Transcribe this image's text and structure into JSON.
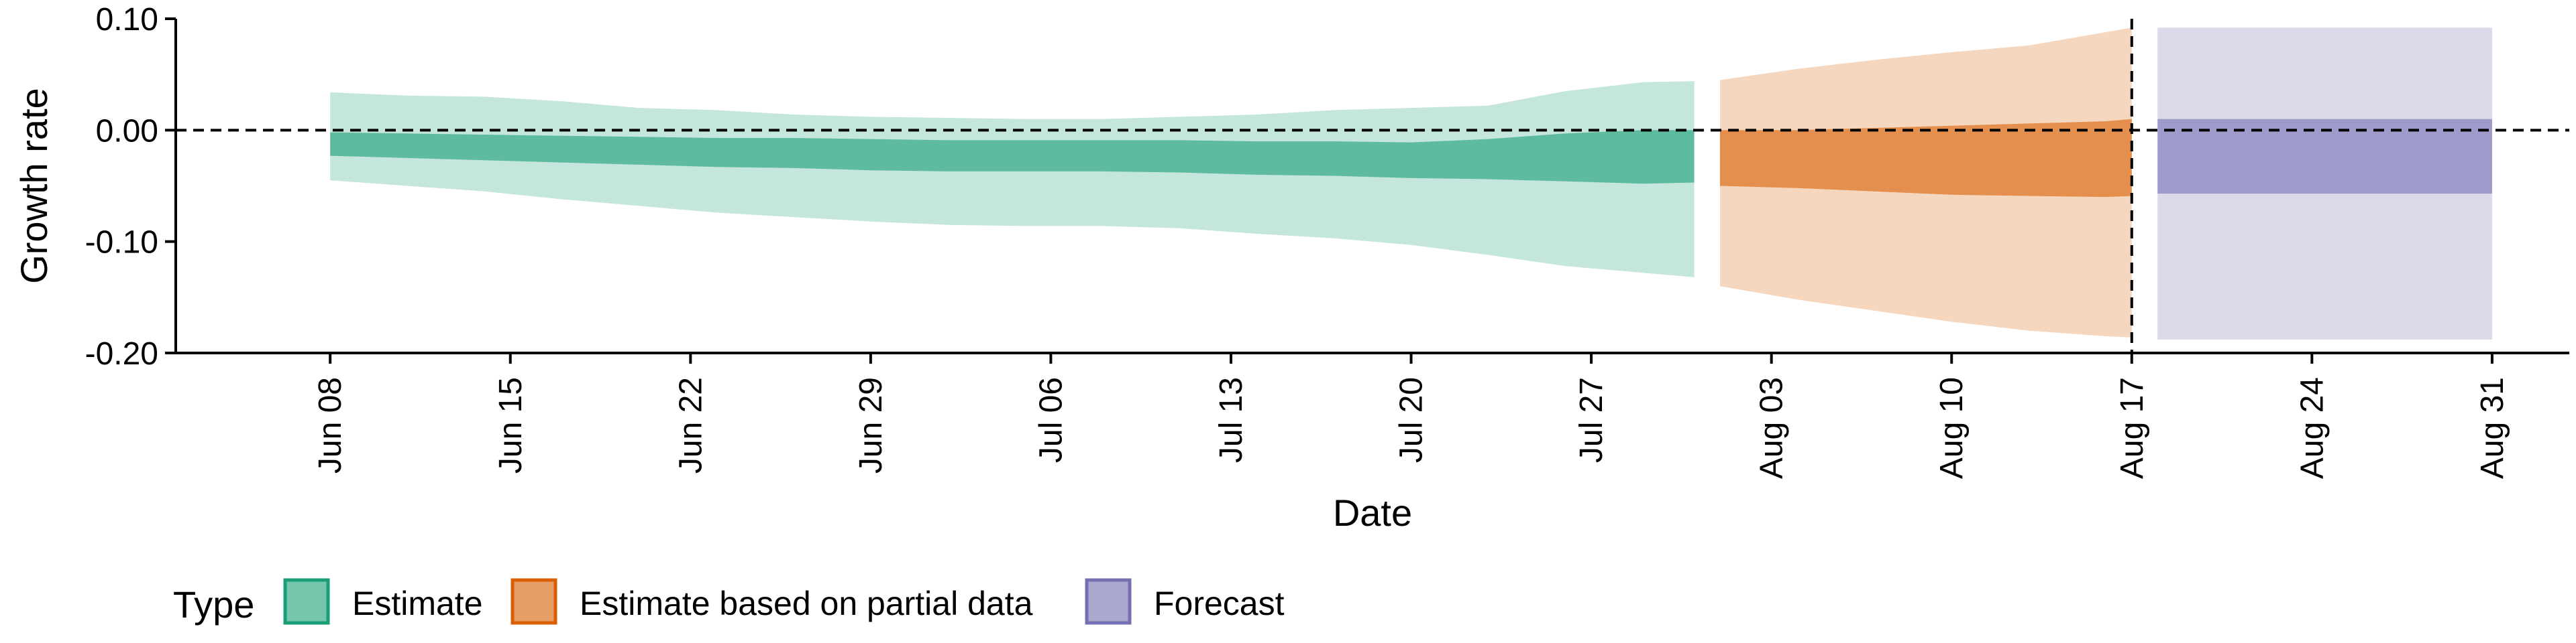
{
  "chart_data": {
    "type": "area",
    "xlabel": "Date",
    "ylabel": "Growth rate",
    "ylim": [
      -0.2,
      0.1
    ],
    "xlim": [
      "2020-06-02",
      "2020-09-03"
    ],
    "yticks": [
      {
        "value": 0.1,
        "label": "0.10"
      },
      {
        "value": 0.0,
        "label": "0.00"
      },
      {
        "value": -0.1,
        "label": "-0.10"
      },
      {
        "value": -0.2,
        "label": "-0.20"
      }
    ],
    "xticks": [
      {
        "date": "2020-06-08",
        "label": "Jun 08"
      },
      {
        "date": "2020-06-15",
        "label": "Jun 15"
      },
      {
        "date": "2020-06-22",
        "label": "Jun 22"
      },
      {
        "date": "2020-06-29",
        "label": "Jun 29"
      },
      {
        "date": "2020-07-06",
        "label": "Jul 06"
      },
      {
        "date": "2020-07-13",
        "label": "Jul 13"
      },
      {
        "date": "2020-07-20",
        "label": "Jul 20"
      },
      {
        "date": "2020-07-27",
        "label": "Jul 27"
      },
      {
        "date": "2020-08-03",
        "label": "Aug 03"
      },
      {
        "date": "2020-08-10",
        "label": "Aug 10"
      },
      {
        "date": "2020-08-17",
        "label": "Aug 17"
      },
      {
        "date": "2020-08-24",
        "label": "Aug 24"
      },
      {
        "date": "2020-08-31",
        "label": "Aug 31"
      }
    ],
    "reference_lines": [
      {
        "orientation": "horizontal",
        "value": 0.0,
        "style": "dashed"
      },
      {
        "orientation": "vertical",
        "date": "2020-08-17",
        "style": "dashed"
      }
    ],
    "grid": false,
    "legend": {
      "title": "Type",
      "placement": "bottom-left",
      "entries": [
        "Estimate",
        "Estimate based on partial data",
        "Forecast"
      ]
    },
    "series": [
      {
        "name": "Estimate",
        "fill": "#1b9e77",
        "points": [
          {
            "date": "2020-06-08",
            "lo90": -0.045,
            "lo50": -0.023,
            "hi50": -0.002,
            "hi90": 0.034
          },
          {
            "date": "2020-06-11",
            "lo90": -0.05,
            "lo50": -0.025,
            "hi50": -0.003,
            "hi90": 0.031
          },
          {
            "date": "2020-06-14",
            "lo90": -0.055,
            "lo50": -0.027,
            "hi50": -0.004,
            "hi90": 0.03
          },
          {
            "date": "2020-06-17",
            "lo90": -0.062,
            "lo50": -0.029,
            "hi50": -0.005,
            "hi90": 0.026
          },
          {
            "date": "2020-06-20",
            "lo90": -0.068,
            "lo50": -0.031,
            "hi50": -0.006,
            "hi90": 0.02
          },
          {
            "date": "2020-06-23",
            "lo90": -0.074,
            "lo50": -0.033,
            "hi50": -0.007,
            "hi90": 0.018
          },
          {
            "date": "2020-06-26",
            "lo90": -0.078,
            "lo50": -0.034,
            "hi50": -0.007,
            "hi90": 0.014
          },
          {
            "date": "2020-06-29",
            "lo90": -0.082,
            "lo50": -0.036,
            "hi50": -0.008,
            "hi90": 0.012
          },
          {
            "date": "2020-07-02",
            "lo90": -0.085,
            "lo50": -0.037,
            "hi50": -0.009,
            "hi90": 0.011
          },
          {
            "date": "2020-07-05",
            "lo90": -0.086,
            "lo50": -0.037,
            "hi50": -0.009,
            "hi90": 0.01
          },
          {
            "date": "2020-07-08",
            "lo90": -0.086,
            "lo50": -0.037,
            "hi50": -0.009,
            "hi90": 0.01
          },
          {
            "date": "2020-07-11",
            "lo90": -0.088,
            "lo50": -0.038,
            "hi50": -0.009,
            "hi90": 0.012
          },
          {
            "date": "2020-07-14",
            "lo90": -0.093,
            "lo50": -0.04,
            "hi50": -0.01,
            "hi90": 0.014
          },
          {
            "date": "2020-07-17",
            "lo90": -0.097,
            "lo50": -0.041,
            "hi50": -0.01,
            "hi90": 0.018
          },
          {
            "date": "2020-07-20",
            "lo90": -0.103,
            "lo50": -0.043,
            "hi50": -0.011,
            "hi90": 0.02
          },
          {
            "date": "2020-07-23",
            "lo90": -0.112,
            "lo50": -0.044,
            "hi50": -0.008,
            "hi90": 0.022
          },
          {
            "date": "2020-07-26",
            "lo90": -0.122,
            "lo50": -0.046,
            "hi50": -0.003,
            "hi90": 0.035
          },
          {
            "date": "2020-07-29",
            "lo90": -0.128,
            "lo50": -0.048,
            "hi50": 0.0,
            "hi90": 0.043
          },
          {
            "date": "2020-07-31",
            "lo90": -0.132,
            "lo50": -0.047,
            "hi50": 0.0,
            "hi90": 0.044
          }
        ]
      },
      {
        "name": "Estimate based on partial data",
        "fill": "#d95f02",
        "points": [
          {
            "date": "2020-08-01",
            "lo90": -0.14,
            "lo50": -0.05,
            "hi50": 0.0,
            "hi90": 0.045
          },
          {
            "date": "2020-08-04",
            "lo90": -0.152,
            "lo50": -0.052,
            "hi50": 0.0,
            "hi90": 0.055
          },
          {
            "date": "2020-08-07",
            "lo90": -0.162,
            "lo50": -0.055,
            "hi50": 0.002,
            "hi90": 0.063
          },
          {
            "date": "2020-08-10",
            "lo90": -0.172,
            "lo50": -0.058,
            "hi50": 0.004,
            "hi90": 0.07
          },
          {
            "date": "2020-08-13",
            "lo90": -0.18,
            "lo50": -0.059,
            "hi50": 0.006,
            "hi90": 0.076
          },
          {
            "date": "2020-08-16",
            "lo90": -0.185,
            "lo50": -0.06,
            "hi50": 0.008,
            "hi90": 0.088
          },
          {
            "date": "2020-08-17",
            "lo90": -0.186,
            "lo50": -0.059,
            "hi50": 0.01,
            "hi90": 0.092
          }
        ]
      },
      {
        "name": "Forecast",
        "fill": "#7570b3",
        "points": [
          {
            "date": "2020-08-18",
            "lo90": -0.188,
            "lo50": -0.057,
            "hi50": 0.01,
            "hi90": 0.092
          },
          {
            "date": "2020-08-31",
            "lo90": -0.188,
            "lo50": -0.057,
            "hi50": 0.01,
            "hi90": 0.092
          }
        ]
      }
    ]
  }
}
